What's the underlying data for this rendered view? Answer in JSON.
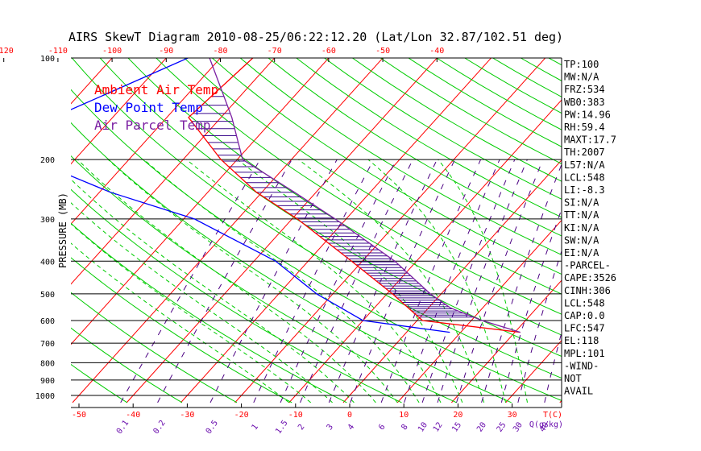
{
  "chart_data": {
    "type": "skewt",
    "title": "AIRS SkewT Diagram 2010-08-25/06:22:12.20 (Lat/Lon 32.87/102.51 deg)",
    "ylabel": "PRESSURE (MB)",
    "pressure_levels": [
      100,
      200,
      300,
      400,
      500,
      600,
      700,
      800,
      900,
      1000
    ],
    "pressure_labels": [
      "100",
      "200",
      "300",
      "400",
      "500",
      "600",
      "700",
      "800",
      "900",
      "1000"
    ],
    "top_temp_labels": [
      "-120",
      "-110",
      "-100",
      "-90",
      "-80",
      "-70",
      "-60",
      "-50",
      "-40"
    ],
    "top_temp_values": [
      -120,
      -110,
      -100,
      -90,
      -80,
      -70,
      -60,
      -50,
      -40
    ],
    "bottom_temp_labels": [
      "-50",
      "-40",
      "-30",
      "-20",
      "-10",
      "0",
      "10",
      "20",
      "30"
    ],
    "bottom_temp_values": [
      -50,
      -40,
      -30,
      -20,
      -10,
      0,
      10,
      20,
      30
    ],
    "bottom_axis_unit": "T(C)",
    "mixing_ratio_labels": [
      "0.1",
      "0.2",
      "0.5",
      "1",
      "1.5",
      "2",
      "3",
      "4",
      "6",
      "8",
      "10",
      "12",
      "15",
      "20",
      "25",
      "30",
      "40"
    ],
    "mixing_ratio_values": [
      0.1,
      0.2,
      0.5,
      1,
      1.5,
      2,
      3,
      4,
      6,
      8,
      10,
      12,
      15,
      20,
      25,
      30,
      40
    ],
    "mixing_ratio_unit": "Q(g/kg)",
    "legend": [
      {
        "label": "Ambient Air Temp",
        "color": "#ff0000"
      },
      {
        "label": "Dew Point Temp",
        "color": "#0000ff"
      },
      {
        "label": "Air Parcel Temp",
        "color": "#7b1fa2"
      }
    ],
    "series": [
      {
        "name": "Ambient Air Temp",
        "color": "#ff0000",
        "points": [
          [
            100,
            -74
          ],
          [
            150,
            -76
          ],
          [
            200,
            -63
          ],
          [
            250,
            -51
          ],
          [
            300,
            -39
          ],
          [
            400,
            -22
          ],
          [
            500,
            -9
          ],
          [
            600,
            1
          ],
          [
            650,
            21
          ]
        ]
      },
      {
        "name": "Dew Point Temp",
        "color": "#0000ff",
        "points": [
          [
            100,
            -86
          ],
          [
            150,
            -101
          ],
          [
            200,
            -98
          ],
          [
            250,
            -78
          ],
          [
            300,
            -58
          ],
          [
            400,
            -36
          ],
          [
            500,
            -23
          ],
          [
            600,
            -10
          ],
          [
            650,
            8
          ]
        ]
      },
      {
        "name": "Air Parcel Temp",
        "color": "#7b1fa2",
        "points": [
          [
            100,
            -82
          ],
          [
            150,
            -68
          ],
          [
            200,
            -59
          ],
          [
            250,
            -44
          ],
          [
            300,
            -32
          ],
          [
            400,
            -14
          ],
          [
            500,
            -2
          ],
          [
            550,
            4
          ],
          [
            600,
            12
          ],
          [
            650,
            21
          ]
        ]
      }
    ],
    "stats": [
      "TP:100",
      "MW:N/A",
      "FRZ:534",
      "WB0:383",
      "PW:14.96",
      "RH:59.4",
      "MAXT:17.7",
      "TH:2007",
      "L57:N/A",
      "LCL:548",
      "LI:-8.3",
      "SI:N/A",
      "TT:N/A",
      "KI:N/A",
      "SW:N/A",
      "EI:N/A",
      "-PARCEL-",
      "CAPE:3526",
      "CINH:306",
      "LCL:548",
      "CAP:0.0",
      "LFC:547",
      "EL:118",
      "MPL:101",
      "-WIND-",
      "NOT",
      "AVAIL"
    ]
  },
  "colors": {
    "isotherm": "#ff0000",
    "dry_adiabat": "#00cc00",
    "moist_adiabat": "#00cc00",
    "mixing_ratio": "#4b0082",
    "isobar": "#000000",
    "axis_label": "#ff0000",
    "mixing_label": "#6a0dad",
    "title": "#000000"
  }
}
